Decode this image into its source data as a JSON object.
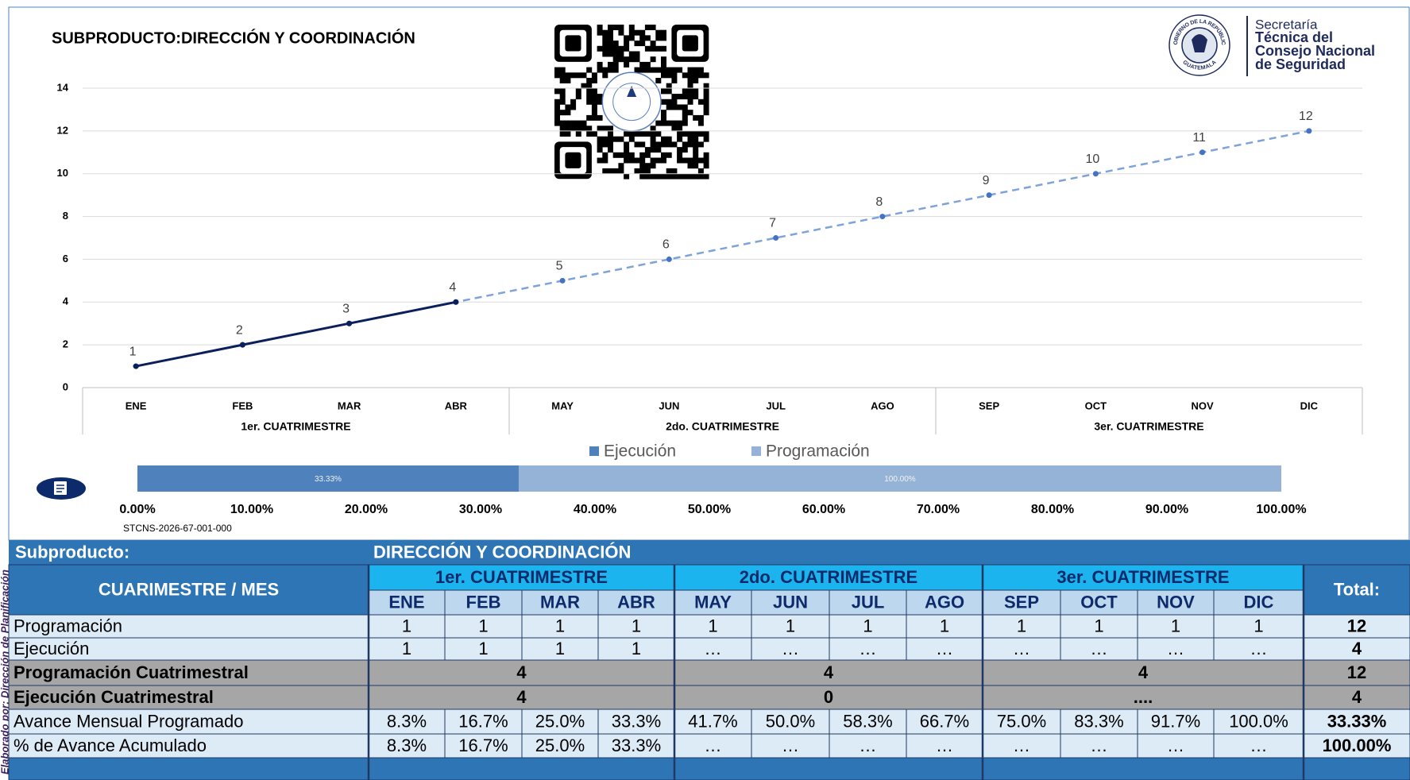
{
  "side_note": "Elaborado por: Dirección de Planificación",
  "logo": {
    "seal_top": "GOBIERNO DE LA REPÚBLICA",
    "seal_bottom": "GUATEMALA",
    "lines": [
      "Secretaría",
      "Técnica del",
      "Consejo Nacional",
      "de Seguridad"
    ]
  },
  "code": "STCNS-2026-67-001-000",
  "chart_data": [
    {
      "type": "line",
      "title": "SUBPRODUCTO:DIRECCIÓN Y COORDINACIÓN",
      "categories": [
        "ENE",
        "FEB",
        "MAR",
        "ABR",
        "MAY",
        "JUN",
        "JUL",
        "AGO",
        "SEP",
        "OCT",
        "NOV",
        "DIC"
      ],
      "groups": [
        "1er. CUATRIMESTRE",
        "2do. CUATRIMESTRE",
        "3er. CUATRIMESTRE"
      ],
      "ylim": [
        0,
        14
      ],
      "yticks": [
        0,
        2,
        4,
        6,
        8,
        10,
        12,
        14
      ],
      "grid": true,
      "series": [
        {
          "color": "#7da3d8",
          "style": "dashed",
          "labels": true,
          "values": [
            1,
            2,
            3,
            4,
            5,
            6,
            7,
            8,
            9,
            10,
            11,
            12
          ]
        },
        {
          "color": "#0b1f5c",
          "style": "solid",
          "labels": false,
          "values": [
            1,
            2,
            3,
            4,
            null,
            null,
            null,
            null,
            null,
            null,
            null,
            null
          ]
        }
      ]
    },
    {
      "type": "hbar",
      "overlap": true,
      "legend": "top",
      "xlim": [
        0,
        100
      ],
      "xticks": [
        {
          "value": 0,
          "label": "0.00%"
        },
        {
          "value": 10,
          "label": "10.00%"
        },
        {
          "value": 20,
          "label": "20.00%"
        },
        {
          "value": 30,
          "label": "30.00%"
        },
        {
          "value": 40,
          "label": "40.00%"
        },
        {
          "value": 50,
          "label": "50.00%"
        },
        {
          "value": 60,
          "label": "60.00%"
        },
        {
          "value": 70,
          "label": "70.00%"
        },
        {
          "value": 80,
          "label": "80.00%"
        },
        {
          "value": 90,
          "label": "90.00%"
        },
        {
          "value": 100,
          "label": "100.00%"
        }
      ],
      "series": [
        {
          "name": "Ejecución",
          "color": "#4f81bd",
          "values": [
            33.33
          ],
          "value_labels": [
            "33.33%"
          ]
        },
        {
          "name": "Programación",
          "color": "#95b3d7",
          "values": [
            100
          ],
          "value_labels": [
            "100.00%"
          ]
        }
      ]
    }
  ],
  "table": {
    "subproducto_label": "Subproducto:",
    "subproducto": "DIRECCIÓN Y COORDINACIÓN",
    "corner": "CUARIMESTRE / MES",
    "total_header": "Total:",
    "quarters": [
      "1er. CUATRIMESTRE",
      "2do. CUATRIMESTRE",
      "3er. CUATRIMESTRE"
    ],
    "months": [
      "ENE",
      "FEB",
      "MAR",
      "ABR",
      "MAY",
      "JUN",
      "JUL",
      "AGO",
      "SEP",
      "OCT",
      "NOV",
      "DIC"
    ],
    "rows": [
      {
        "label": "Programación",
        "style": "data",
        "cells": [
          "1",
          "1",
          "1",
          "1",
          "1",
          "1",
          "1",
          "1",
          "1",
          "1",
          "1",
          "1"
        ],
        "total": "12"
      },
      {
        "label": "Ejecución",
        "style": "data",
        "cells": [
          "1",
          "1",
          "1",
          "1",
          "…",
          "…",
          "…",
          "…",
          "…",
          "…",
          "…",
          "…"
        ],
        "total": "4"
      },
      {
        "label": "Programación Cuatrimestral",
        "style": "summary",
        "cells": [
          "4",
          "4",
          "4"
        ],
        "total": "12"
      },
      {
        "label": "Ejecución Cuatrimestral",
        "style": "summary",
        "cells": [
          "4",
          "0",
          "...."
        ],
        "total": "4"
      },
      {
        "label": "Avance Mensual Programado",
        "style": "data",
        "cells": [
          "8.3%",
          "16.7%",
          "25.0%",
          "33.3%",
          "41.7%",
          "50.0%",
          "58.3%",
          "66.7%",
          "75.0%",
          "83.3%",
          "91.7%",
          "100.0%"
        ],
        "total": "33.33%"
      },
      {
        "label": "% de Avance Acumulado",
        "style": "data",
        "cells": [
          "8.3%",
          "16.7%",
          "25.0%",
          "33.3%",
          "…",
          "…",
          "…",
          "…",
          "…",
          "…",
          "…",
          "…"
        ],
        "total": "100.00%"
      }
    ]
  }
}
